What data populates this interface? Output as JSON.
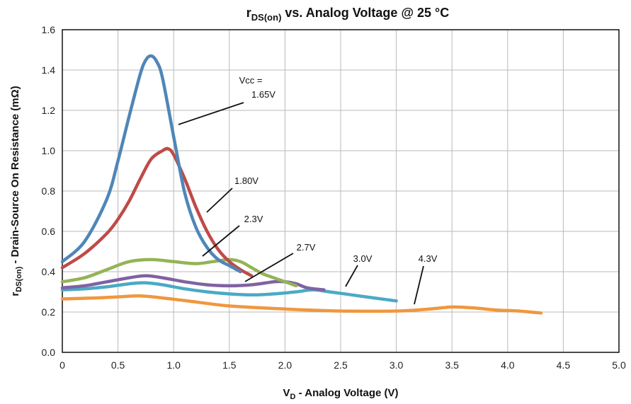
{
  "chart_data": {
    "type": "line",
    "title": {
      "main": "r",
      "sub": "DS(on)",
      "rest": " vs. Analog Voltage @ 25 °C"
    },
    "xlabel": {
      "main": "V",
      "sub": "D",
      "rest": " - Analog Voltage (V)"
    },
    "ylabel": {
      "main": "r",
      "sub": "DS(on)",
      "rest": " - Drain-Source On Resistance (mΩ)"
    },
    "xlim": [
      0,
      5.0
    ],
    "ylim": [
      0.0,
      1.6
    ],
    "x_ticks": [
      "0",
      "0.5",
      "1.0",
      "1.5",
      "2.0",
      "2.5",
      "3.0",
      "3.5",
      "4.0",
      "4.5",
      "5.0"
    ],
    "y_ticks": [
      "0.0",
      "0.2",
      "0.4",
      "0.6",
      "0.8",
      "1.0",
      "1.2",
      "1.4",
      "1.6"
    ],
    "grid": true,
    "legend_title": "Vcc =",
    "series": [
      {
        "name": "1.65V",
        "color": "#4f86b8",
        "x": [
          0,
          0.2,
          0.4,
          0.5,
          0.6,
          0.7,
          0.75,
          0.8,
          0.85,
          0.9,
          1.0,
          1.1,
          1.2,
          1.3,
          1.4,
          1.5,
          1.6
        ],
        "y": [
          0.45,
          0.55,
          0.76,
          0.95,
          1.17,
          1.38,
          1.45,
          1.47,
          1.44,
          1.36,
          1.07,
          0.79,
          0.62,
          0.52,
          0.46,
          0.43,
          0.4
        ]
      },
      {
        "name": "1.80V",
        "color": "#be4b48",
        "x": [
          0,
          0.2,
          0.4,
          0.5,
          0.6,
          0.7,
          0.8,
          0.9,
          0.95,
          1.0,
          1.1,
          1.2,
          1.3,
          1.4,
          1.5,
          1.6,
          1.7
        ],
        "y": [
          0.42,
          0.49,
          0.59,
          0.66,
          0.75,
          0.86,
          0.96,
          1.0,
          1.01,
          0.98,
          0.86,
          0.72,
          0.6,
          0.51,
          0.45,
          0.41,
          0.38
        ]
      },
      {
        "name": "2.3V",
        "color": "#94b356",
        "x": [
          0,
          0.2,
          0.4,
          0.6,
          0.8,
          1.0,
          1.2,
          1.35,
          1.5,
          1.6,
          1.7,
          1.8,
          1.95,
          2.1
        ],
        "y": [
          0.35,
          0.37,
          0.41,
          0.45,
          0.46,
          0.45,
          0.44,
          0.45,
          0.46,
          0.45,
          0.42,
          0.39,
          0.36,
          0.33
        ]
      },
      {
        "name": "2.7V",
        "color": "#8062a2",
        "x": [
          0,
          0.2,
          0.4,
          0.6,
          0.75,
          0.9,
          1.1,
          1.3,
          1.5,
          1.7,
          1.9,
          2.0,
          2.1,
          2.2,
          2.35
        ],
        "y": [
          0.32,
          0.33,
          0.35,
          0.37,
          0.38,
          0.37,
          0.35,
          0.335,
          0.33,
          0.335,
          0.35,
          0.35,
          0.34,
          0.32,
          0.31
        ]
      },
      {
        "name": "3.0V",
        "color": "#4aaac5",
        "x": [
          0,
          0.2,
          0.4,
          0.6,
          0.75,
          0.9,
          1.1,
          1.3,
          1.5,
          1.7,
          1.9,
          2.1,
          2.25,
          2.4,
          2.6,
          2.8,
          3.0
        ],
        "y": [
          0.31,
          0.315,
          0.325,
          0.34,
          0.345,
          0.335,
          0.315,
          0.3,
          0.29,
          0.285,
          0.29,
          0.3,
          0.31,
          0.3,
          0.285,
          0.27,
          0.255
        ]
      },
      {
        "name": "4.3V",
        "color": "#f0973e",
        "x": [
          0,
          0.3,
          0.5,
          0.7,
          0.9,
          1.2,
          1.5,
          2.0,
          2.5,
          3.0,
          3.3,
          3.5,
          3.7,
          3.9,
          4.1,
          4.3
        ],
        "y": [
          0.265,
          0.27,
          0.275,
          0.28,
          0.27,
          0.25,
          0.23,
          0.215,
          0.205,
          0.205,
          0.215,
          0.225,
          0.22,
          0.21,
          0.205,
          0.195
        ]
      }
    ]
  }
}
